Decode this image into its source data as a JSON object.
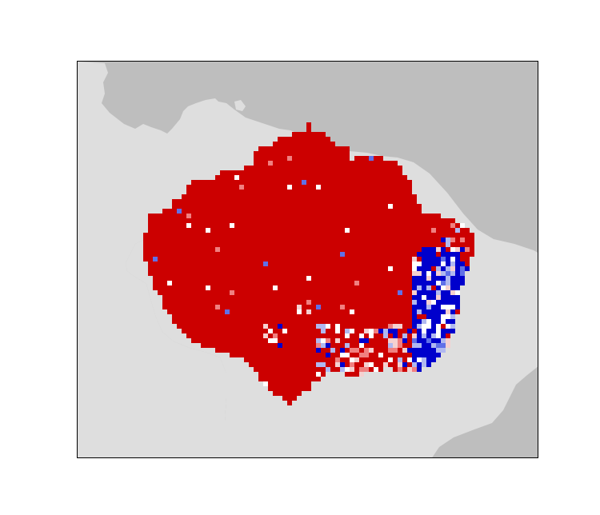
{
  "map": {
    "ocean_color": "#bebebe",
    "land_color": "#dedede",
    "frame_color": "#000000",
    "palette": {
      "red": "#cc0000",
      "pink": "#f08080",
      "pale": "#f5d0d0",
      "white": "#ffffff",
      "light_blue": "#b0b8f0",
      "mid_blue": "#6070e8",
      "blue": "#0000cc"
    }
  }
}
